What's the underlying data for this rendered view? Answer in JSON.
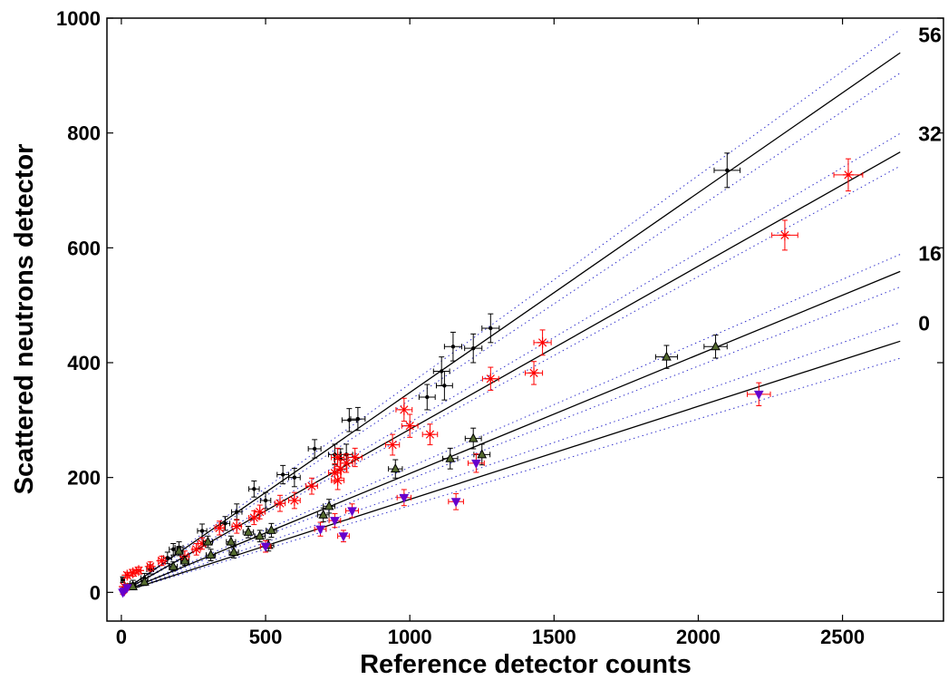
{
  "chart_data": {
    "type": "scatter",
    "xlabel": "Reference detector counts",
    "ylabel": "Scattered neutrons detector",
    "xlim": [
      -50,
      2850
    ],
    "ylim": [
      -50,
      1000
    ],
    "xticks": [
      0,
      500,
      1000,
      1500,
      2000,
      2500
    ],
    "yticks": [
      0,
      200,
      400,
      600,
      800,
      1000
    ],
    "grid": false,
    "legend": "none",
    "series": [
      {
        "name": "56",
        "color": "#000000",
        "marker": "dot",
        "fit_slope": 0.348,
        "band_slopes": [
          0.335,
          0.363
        ],
        "points": [
          [
            2100,
            735
          ],
          [
            1280,
            460
          ],
          [
            1220,
            425
          ],
          [
            1150,
            428
          ],
          [
            1110,
            385
          ],
          [
            1120,
            360
          ],
          [
            1060,
            340
          ],
          [
            820,
            302
          ],
          [
            790,
            300
          ],
          [
            780,
            240
          ],
          [
            760,
            232
          ],
          [
            740,
            240
          ],
          [
            670,
            250
          ],
          [
            600,
            200
          ],
          [
            560,
            205
          ],
          [
            500,
            160
          ],
          [
            460,
            180
          ],
          [
            400,
            140
          ],
          [
            360,
            120
          ],
          [
            280,
            107
          ],
          [
            200,
            78
          ],
          [
            180,
            75
          ],
          [
            160,
            60
          ],
          [
            100,
            40
          ],
          [
            80,
            25
          ],
          [
            40,
            15
          ],
          [
            20,
            10
          ],
          [
            10,
            5
          ],
          [
            5,
            22
          ]
        ],
        "y_err": [
          30,
          25,
          25,
          25,
          25,
          25,
          22,
          20,
          20,
          18,
          18,
          18,
          16,
          16,
          16,
          14,
          14,
          14,
          12,
          12,
          10,
          10,
          10,
          8,
          8,
          6,
          5,
          4,
          5
        ],
        "x_err": [
          45,
          30,
          30,
          30,
          28,
          28,
          28,
          25,
          25,
          22,
          22,
          22,
          22,
          20,
          20,
          18,
          18,
          18,
          16,
          16,
          14,
          14,
          14,
          12,
          12,
          10,
          8,
          6,
          6
        ]
      },
      {
        "name": "32",
        "color": "#ff0000",
        "marker": "star",
        "fit_slope": 0.284,
        "band_slopes": [
          0.275,
          0.296
        ],
        "points": [
          [
            2520,
            727
          ],
          [
            2300,
            622
          ],
          [
            1460,
            435
          ],
          [
            1430,
            382
          ],
          [
            1280,
            372
          ],
          [
            1000,
            290
          ],
          [
            980,
            318
          ],
          [
            1070,
            275
          ],
          [
            940,
            257
          ],
          [
            810,
            235
          ],
          [
            780,
            225
          ],
          [
            750,
            235
          ],
          [
            760,
            215
          ],
          [
            740,
            208
          ],
          [
            750,
            195
          ],
          [
            660,
            185
          ],
          [
            600,
            160
          ],
          [
            550,
            155
          ],
          [
            480,
            140
          ],
          [
            460,
            130
          ],
          [
            400,
            115
          ],
          [
            340,
            112
          ],
          [
            280,
            85
          ],
          [
            260,
            75
          ],
          [
            220,
            62
          ],
          [
            140,
            55
          ],
          [
            100,
            45
          ],
          [
            60,
            38
          ],
          [
            40,
            34
          ],
          [
            20,
            30
          ],
          [
            10,
            10
          ]
        ],
        "y_err": [
          28,
          26,
          22,
          20,
          20,
          20,
          20,
          18,
          18,
          16,
          16,
          16,
          16,
          16,
          16,
          14,
          14,
          14,
          12,
          12,
          12,
          12,
          10,
          10,
          10,
          8,
          8,
          6,
          6,
          5,
          4
        ],
        "x_err": [
          50,
          45,
          30,
          30,
          28,
          28,
          28,
          26,
          24,
          24,
          22,
          22,
          22,
          22,
          22,
          20,
          20,
          18,
          18,
          18,
          16,
          16,
          14,
          14,
          14,
          12,
          10,
          8,
          8,
          6,
          4
        ]
      },
      {
        "name": "16",
        "color": "#000000",
        "marker": "triangle",
        "marker_fill": "#556b2f",
        "fit_slope": 0.207,
        "band_slopes": [
          0.197,
          0.218
        ],
        "points": [
          [
            2060,
            428
          ],
          [
            1890,
            410
          ],
          [
            1220,
            268
          ],
          [
            1250,
            240
          ],
          [
            1140,
            233
          ],
          [
            950,
            215
          ],
          [
            720,
            150
          ],
          [
            700,
            135
          ],
          [
            520,
            108
          ],
          [
            510,
            82
          ],
          [
            480,
            98
          ],
          [
            440,
            105
          ],
          [
            390,
            70
          ],
          [
            380,
            88
          ],
          [
            310,
            65
          ],
          [
            300,
            88
          ],
          [
            220,
            55
          ],
          [
            200,
            72
          ],
          [
            180,
            45
          ],
          [
            80,
            18
          ],
          [
            40,
            10
          ]
        ],
        "y_err": [
          20,
          20,
          18,
          18,
          18,
          16,
          12,
          12,
          12,
          10,
          10,
          10,
          10,
          10,
          10,
          10,
          8,
          8,
          8,
          6,
          4
        ],
        "x_err": [
          40,
          38,
          28,
          28,
          26,
          24,
          20,
          20,
          18,
          18,
          18,
          18,
          16,
          16,
          16,
          16,
          14,
          14,
          14,
          10,
          8
        ]
      },
      {
        "name": "0",
        "color": "#ff0000",
        "marker": "triangle-down",
        "marker_fill": "#6600cc",
        "fit_slope": 0.162,
        "band_slopes": [
          0.151,
          0.174
        ],
        "points": [
          [
            2210,
            345
          ],
          [
            1230,
            225
          ],
          [
            980,
            165
          ],
          [
            1160,
            158
          ],
          [
            800,
            142
          ],
          [
            740,
            125
          ],
          [
            690,
            110
          ],
          [
            770,
            98
          ],
          [
            500,
            80
          ],
          [
            20,
            8
          ],
          [
            10,
            2
          ],
          [
            5,
            0
          ]
        ],
        "y_err": [
          20,
          16,
          14,
          14,
          12,
          12,
          12,
          10,
          10,
          4,
          3,
          3
        ],
        "x_err": [
          40,
          28,
          24,
          26,
          22,
          20,
          20,
          20,
          18,
          6,
          5,
          5
        ]
      }
    ]
  }
}
